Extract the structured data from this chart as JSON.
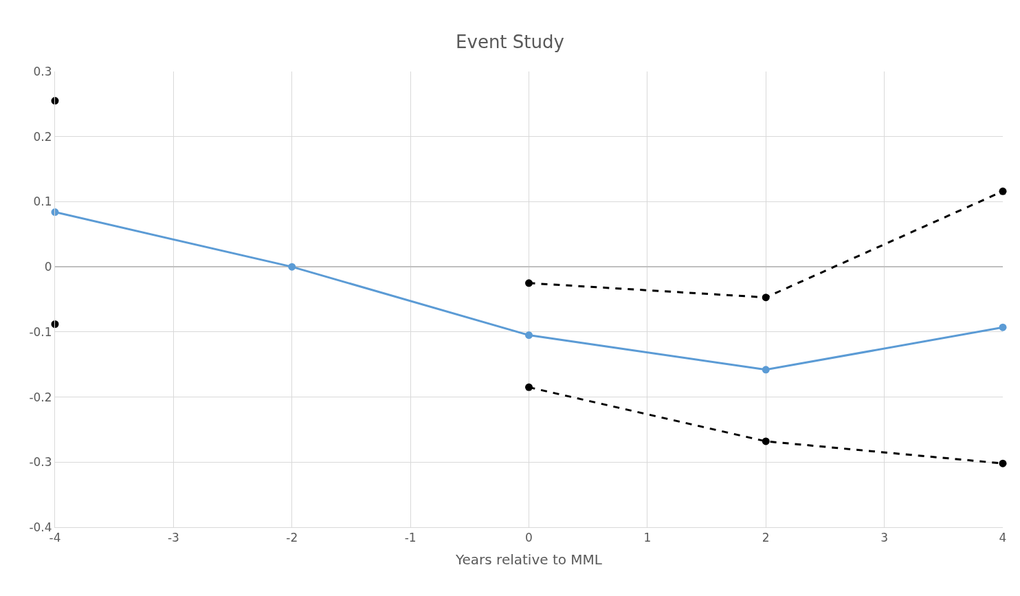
{
  "chart_data": {
    "type": "line",
    "title": "Event Study",
    "xlabel": "Years relative to MML",
    "x": [
      -4,
      -2,
      0,
      2,
      4
    ],
    "series": [
      {
        "color": "#5b9bd5",
        "values": [
          0.084,
          0.0,
          -0.105,
          -0.158,
          -0.093
        ],
        "line_style": "solid"
      },
      {
        "color": "#000000",
        "values": [
          0.255,
          null,
          -0.025,
          -0.047,
          0.116
        ],
        "line_style": "dashed"
      },
      {
        "color": "#000000",
        "values": [
          -0.088,
          null,
          -0.185,
          -0.268,
          -0.302
        ],
        "line_style": "dashed"
      }
    ],
    "xlim": [
      -4,
      4
    ],
    "xticks": [
      -4,
      -3,
      -2,
      -1,
      0,
      1,
      2,
      3,
      4
    ],
    "ylim": [
      -0.4,
      0.3
    ],
    "yticks": [
      -0.4,
      -0.3,
      -0.2,
      -0.1,
      0,
      0.1,
      0.2,
      0.3
    ],
    "grid": true,
    "marker": "circle"
  }
}
